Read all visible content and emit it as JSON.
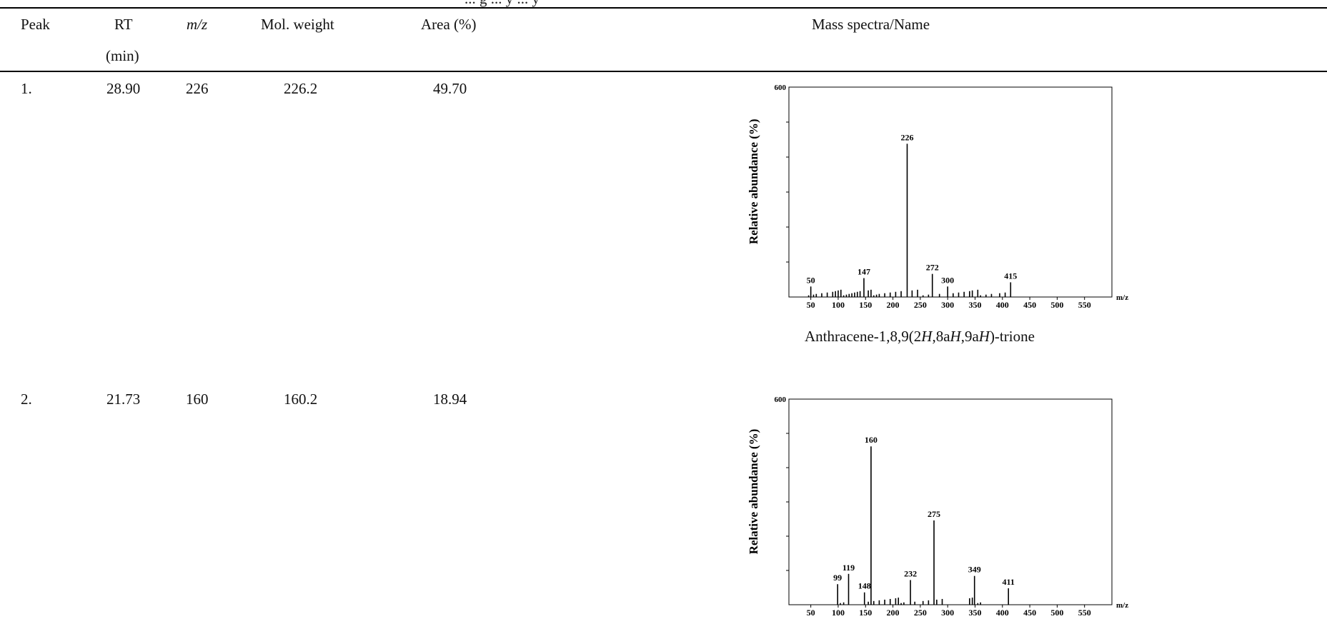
{
  "caption_fragment": "... g ... y ... y",
  "table": {
    "headers": {
      "peak": "Peak",
      "rt_line1": "RT",
      "rt_line2": "(min)",
      "mz": "m/z",
      "mol_weight": "Mol. weight",
      "area": "Area (%)",
      "spectra_name": "Mass spectra/Name"
    },
    "rows": [
      {
        "peak": "1.",
        "rt": "28.90",
        "mz": "226",
        "mol_weight": "226.2",
        "area": "49.70",
        "name": "Anthracene-1,8,9(2H,8aH,9aH)-trione",
        "spectrum": {
          "ymax_label": "600",
          "ylabel": "Relative abundance  (%)",
          "xlabel": "m/z",
          "xticks": [
            "50",
            "100",
            "150",
            "200",
            "250",
            "300",
            "350",
            "400",
            "450",
            "500",
            "550"
          ],
          "peaks": [
            {
              "mz": 50,
              "h": 0.05,
              "label": "50"
            },
            {
              "mz": 147,
              "h": 0.09,
              "label": "147"
            },
            {
              "mz": 226,
              "h": 0.73,
              "label": "226"
            },
            {
              "mz": 272,
              "h": 0.11,
              "label": "272"
            },
            {
              "mz": 300,
              "h": 0.05,
              "label": "300"
            },
            {
              "mz": 415,
              "h": 0.07,
              "label": "415"
            }
          ],
          "minor": [
            46,
            55,
            60,
            70,
            80,
            90,
            95,
            100,
            105,
            110,
            115,
            120,
            125,
            130,
            135,
            140,
            155,
            160,
            165,
            170,
            175,
            185,
            195,
            205,
            215,
            235,
            245,
            255,
            265,
            285,
            310,
            320,
            330,
            340,
            345,
            355,
            360,
            370,
            380,
            395,
            405
          ]
        }
      },
      {
        "peak": "2.",
        "rt": "21.73",
        "mz": "160",
        "mol_weight": "160.2",
        "area": "18.94",
        "name": "",
        "spectrum": {
          "ymax_label": "600",
          "ylabel": "Relative abundance  (%)",
          "xlabel": "m/z",
          "xticks": [
            "50",
            "100",
            "150",
            "200",
            "250",
            "300",
            "350",
            "400",
            "450",
            "500",
            "550"
          ],
          "peaks": [
            {
              "mz": 99,
              "h": 0.1,
              "label": "99"
            },
            {
              "mz": 119,
              "h": 0.15,
              "label": "119"
            },
            {
              "mz": 148,
              "h": 0.06,
              "label": "148"
            },
            {
              "mz": 160,
              "h": 0.77,
              "label": "160"
            },
            {
              "mz": 232,
              "h": 0.12,
              "label": "232"
            },
            {
              "mz": 275,
              "h": 0.41,
              "label": "275"
            },
            {
              "mz": 349,
              "h": 0.14,
              "label": "349"
            },
            {
              "mz": 411,
              "h": 0.08,
              "label": "411"
            }
          ],
          "minor": [
            104,
            110,
            155,
            165,
            175,
            185,
            195,
            205,
            210,
            215,
            220,
            240,
            255,
            265,
            280,
            290,
            340,
            345,
            355,
            360
          ]
        }
      }
    ]
  }
}
